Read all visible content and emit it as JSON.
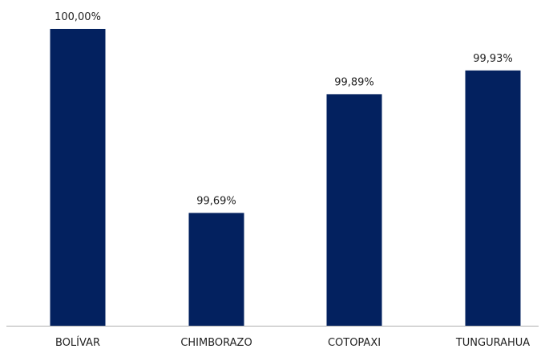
{
  "chart_data": {
    "type": "bar",
    "categories": [
      "BOLÍVAR",
      "CHIMBORAZO",
      "COTOPAXI",
      "TUNGURAHUA"
    ],
    "values": [
      100.0,
      99.69,
      99.89,
      99.93
    ],
    "data_labels": [
      "100,00%",
      "99,69%",
      "99,89%",
      "99,93%"
    ],
    "ylim": [
      99.5,
      100.0
    ],
    "grid": false,
    "legend": "none",
    "bar_color": "#03215f",
    "axis_color": "#b0b0b0"
  }
}
